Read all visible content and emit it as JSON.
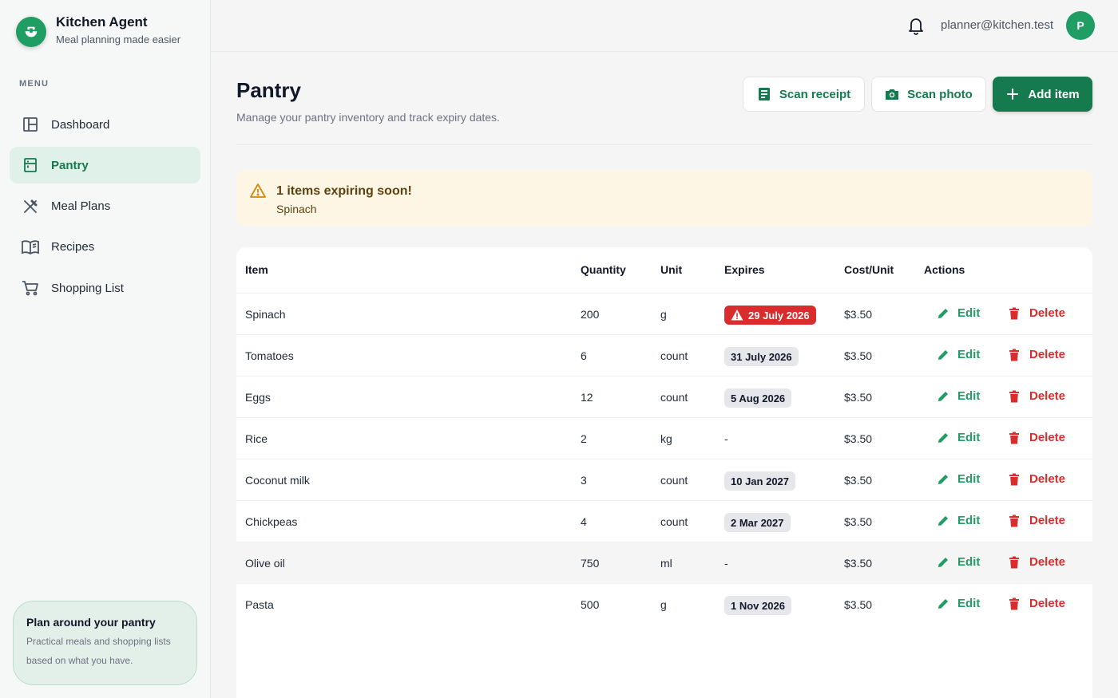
{
  "brand": {
    "title": "Kitchen Agent",
    "subtitle": "Meal planning made easier"
  },
  "sidebar": {
    "menu_label": "MENU",
    "items": [
      {
        "label": "Dashboard",
        "icon": "dashboard-icon",
        "active": false
      },
      {
        "label": "Pantry",
        "icon": "pantry-icon",
        "active": true
      },
      {
        "label": "Meal Plans",
        "icon": "utensils-icon",
        "active": false
      },
      {
        "label": "Recipes",
        "icon": "book-icon",
        "active": false
      },
      {
        "label": "Shopping List",
        "icon": "cart-icon",
        "active": false
      }
    ],
    "promo": {
      "title": "Plan around your pantry",
      "text": "Practical meals and shopping lists based on what you have."
    }
  },
  "header": {
    "user_email": "planner@kitchen.test",
    "avatar_initial": "P"
  },
  "page": {
    "title": "Pantry",
    "subtitle": "Manage your pantry inventory and track expiry dates.",
    "buttons": {
      "scan_receipt": "Scan receipt",
      "scan_photo": "Scan photo",
      "add_item": "Add item"
    }
  },
  "alert": {
    "title": "1 items expiring soon!",
    "items": "Spinach"
  },
  "table": {
    "columns": [
      "Item",
      "Quantity",
      "Unit",
      "Expires",
      "Cost/Unit",
      "Actions"
    ],
    "edit_label": "Edit",
    "delete_label": "Delete",
    "rows": [
      {
        "item": "Spinach",
        "quantity": "200",
        "unit": "g",
        "expires": "29 July 2026",
        "expiring": true,
        "cost": "$3.50"
      },
      {
        "item": "Tomatoes",
        "quantity": "6",
        "unit": "count",
        "expires": "31 July 2026",
        "expiring": false,
        "cost": "$3.50"
      },
      {
        "item": "Eggs",
        "quantity": "12",
        "unit": "count",
        "expires": "5 Aug 2026",
        "expiring": false,
        "cost": "$3.50"
      },
      {
        "item": "Rice",
        "quantity": "2",
        "unit": "kg",
        "expires": "-",
        "expiring": false,
        "cost": "$3.50"
      },
      {
        "item": "Coconut milk",
        "quantity": "3",
        "unit": "count",
        "expires": "10 Jan 2027",
        "expiring": false,
        "cost": "$3.50"
      },
      {
        "item": "Chickpeas",
        "quantity": "4",
        "unit": "count",
        "expires": "2 Mar 2027",
        "expiring": false,
        "cost": "$3.50"
      },
      {
        "item": "Olive oil",
        "quantity": "750",
        "unit": "ml",
        "expires": "-",
        "expiring": false,
        "cost": "$3.50",
        "hovered": true
      },
      {
        "item": "Pasta",
        "quantity": "500",
        "unit": "g",
        "expires": "1 Nov 2026",
        "expiring": false,
        "cost": "$3.50"
      }
    ]
  },
  "colors": {
    "brand": "#1f9d63",
    "brand_dark": "#157a4e",
    "danger": "#d92d2d",
    "warning_bg": "#fef6e5"
  }
}
